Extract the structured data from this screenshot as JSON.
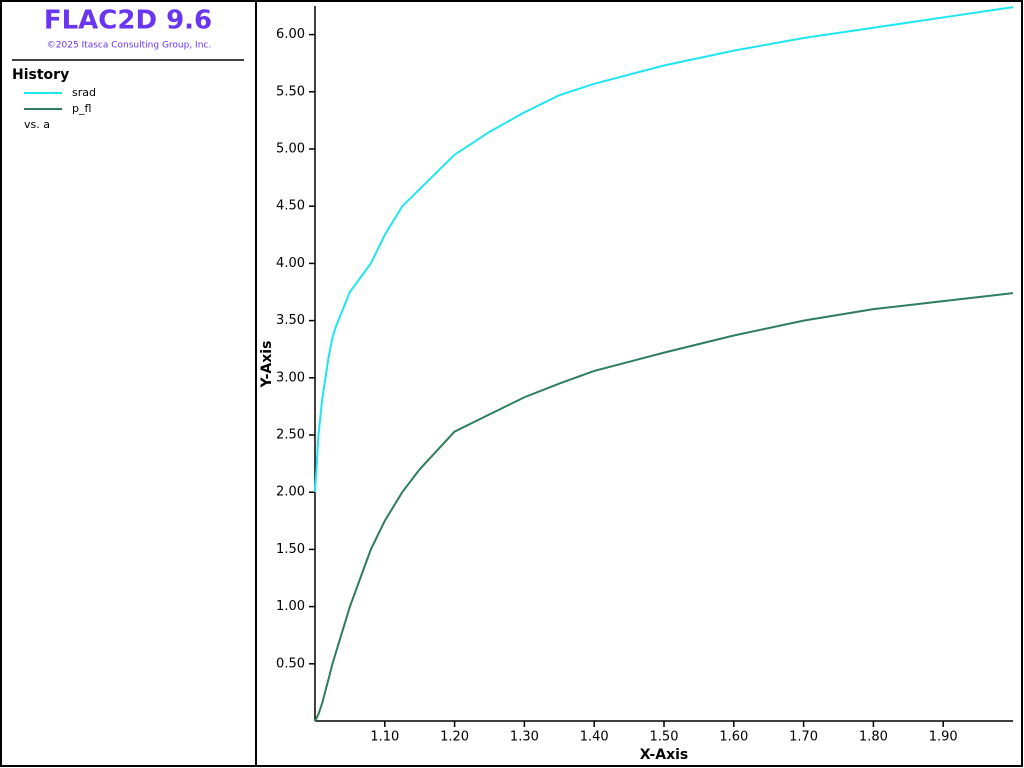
{
  "chart_data": {
    "type": "line",
    "title": "FLAC2D 9.6",
    "subtitle": "©2025 Itasca Consulting Group, Inc.",
    "legend_title": "History",
    "legend_note": "vs. a",
    "xlabel": "X-Axis",
    "ylabel": "Y-Axis",
    "x": [
      1.0,
      1.005,
      1.01,
      1.02,
      1.025,
      1.03,
      1.05,
      1.08,
      1.1,
      1.125,
      1.15,
      1.2,
      1.25,
      1.3,
      1.35,
      1.4,
      1.5,
      1.6,
      1.7,
      1.8,
      1.9,
      2.0
    ],
    "series": [
      {
        "name": "srad",
        "color": "#1ee6f0",
        "values": [
          2.0,
          2.5,
          2.8,
          3.2,
          3.35,
          3.45,
          3.75,
          4.0,
          4.25,
          4.5,
          4.65,
          4.95,
          5.15,
          5.32,
          5.47,
          5.57,
          5.73,
          5.86,
          5.97,
          6.06,
          6.15,
          6.24
        ]
      },
      {
        "name": "p_fl",
        "color": "#2e7d5b",
        "values": [
          0.0,
          0.06,
          0.15,
          0.38,
          0.5,
          0.6,
          1.0,
          1.5,
          1.75,
          2.0,
          2.2,
          2.53,
          2.68,
          2.83,
          2.95,
          3.06,
          3.22,
          3.37,
          3.5,
          3.6,
          3.67,
          3.74
        ]
      }
    ],
    "xlim": [
      1.0,
      2.0
    ],
    "ylim": [
      0,
      6.25
    ],
    "xticks": [
      {
        "value": 1.1,
        "label": "1.10"
      },
      {
        "value": 1.2,
        "label": "1.20"
      },
      {
        "value": 1.3,
        "label": "1.30"
      },
      {
        "value": 1.4,
        "label": "1.40"
      },
      {
        "value": 1.5,
        "label": "1.50"
      },
      {
        "value": 1.6,
        "label": "1.60"
      },
      {
        "value": 1.7,
        "label": "1.70"
      },
      {
        "value": 1.8,
        "label": "1.80"
      },
      {
        "value": 1.9,
        "label": "1.90"
      }
    ],
    "yticks": [
      {
        "value": 0.5,
        "label": "0.50"
      },
      {
        "value": 1.0,
        "label": "1.00"
      },
      {
        "value": 1.5,
        "label": "1.50"
      },
      {
        "value": 2.0,
        "label": "2.00"
      },
      {
        "value": 2.5,
        "label": "2.50"
      },
      {
        "value": 3.0,
        "label": "3.00"
      },
      {
        "value": 3.5,
        "label": "3.50"
      },
      {
        "value": 4.0,
        "label": "4.00"
      },
      {
        "value": 4.5,
        "label": "4.50"
      },
      {
        "value": 5.0,
        "label": "5.00"
      },
      {
        "value": 5.5,
        "label": "5.50"
      },
      {
        "value": 6.0,
        "label": "6.00"
      }
    ],
    "title_color": "#6a35f0"
  }
}
